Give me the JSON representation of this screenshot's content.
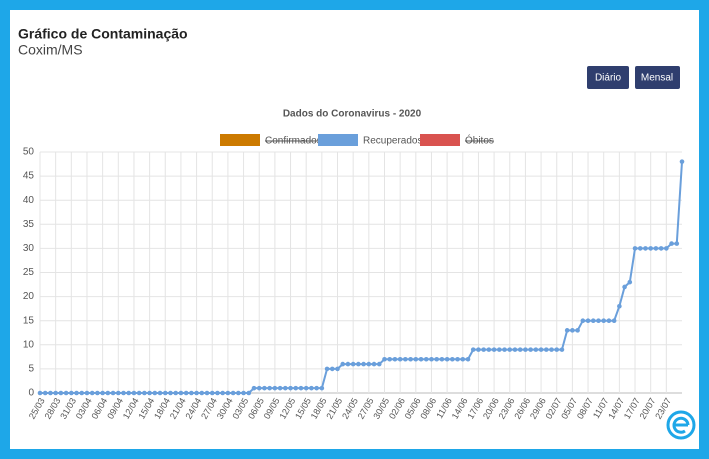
{
  "header": {
    "title": "Gráfico de Contaminação",
    "subtitle": "Coxim/MS",
    "buttons": [
      "Diário",
      "Mensal"
    ]
  },
  "chart_data": {
    "type": "line",
    "title": "Dados do Coronavirus - 2020",
    "categories": [
      "25/03",
      null,
      null,
      "28/03",
      null,
      null,
      "31/03",
      null,
      null,
      "03/04",
      null,
      null,
      "06/04",
      null,
      null,
      "09/04",
      null,
      null,
      "12/04",
      null,
      null,
      "15/04",
      null,
      null,
      "18/04",
      null,
      null,
      "21/04",
      null,
      null,
      "24/04",
      null,
      null,
      "27/04",
      null,
      null,
      "30/04",
      null,
      null,
      "03/05",
      null,
      null,
      "06/05",
      null,
      null,
      "09/05",
      null,
      null,
      "12/05",
      null,
      null,
      "15/05",
      null,
      null,
      "18/05",
      null,
      null,
      "21/05",
      null,
      null,
      "24/05",
      null,
      null,
      "27/05",
      null,
      null,
      "30/05",
      null,
      null,
      "02/06",
      null,
      null,
      "05/06",
      null,
      null,
      "08/06",
      null,
      null,
      "11/06",
      null,
      null,
      "14/06",
      null,
      null,
      "17/06",
      null,
      null,
      "20/06",
      null,
      null,
      "23/06",
      null,
      null,
      "26/06",
      null,
      null,
      "29/06",
      null,
      null,
      "02/07",
      null,
      null,
      "05/07",
      null,
      null,
      "08/07",
      null,
      null,
      "11/07",
      null,
      null,
      "14/07",
      null,
      null,
      "17/07",
      null,
      null,
      "20/07",
      null,
      null,
      "23/07",
      null,
      null,
      null
    ],
    "series": [
      {
        "name": "Confirmados",
        "color": "#cc7a00",
        "hidden": true
      },
      {
        "name": "Recuperados",
        "color": "#6a9fdb",
        "values": [
          0,
          0,
          0,
          0,
          0,
          0,
          0,
          0,
          0,
          0,
          0,
          0,
          0,
          0,
          0,
          0,
          0,
          0,
          0,
          0,
          0,
          0,
          0,
          0,
          0,
          0,
          0,
          0,
          0,
          0,
          0,
          0,
          0,
          0,
          0,
          0,
          0,
          0,
          0,
          0,
          0,
          1,
          1,
          1,
          1,
          1,
          1,
          1,
          1,
          1,
          1,
          1,
          1,
          1,
          1,
          5,
          5,
          5,
          6,
          6,
          6,
          6,
          6,
          6,
          6,
          6,
          7,
          7,
          7,
          7,
          7,
          7,
          7,
          7,
          7,
          7,
          7,
          7,
          7,
          7,
          7,
          7,
          7,
          9,
          9,
          9,
          9,
          9,
          9,
          9,
          9,
          9,
          9,
          9,
          9,
          9,
          9,
          9,
          9,
          9,
          9,
          13,
          13,
          13,
          15,
          15,
          15,
          15,
          15,
          15,
          15,
          18,
          22,
          23,
          30,
          30,
          30,
          30,
          30,
          30,
          30,
          31,
          31,
          48
        ]
      },
      {
        "name": "Óbitos",
        "color": "#d9534f",
        "hidden": true
      }
    ],
    "ylim": [
      0,
      50
    ],
    "yticks": [
      0,
      5,
      10,
      15,
      20,
      25,
      30,
      35,
      40,
      45,
      50
    ],
    "grid": true
  }
}
